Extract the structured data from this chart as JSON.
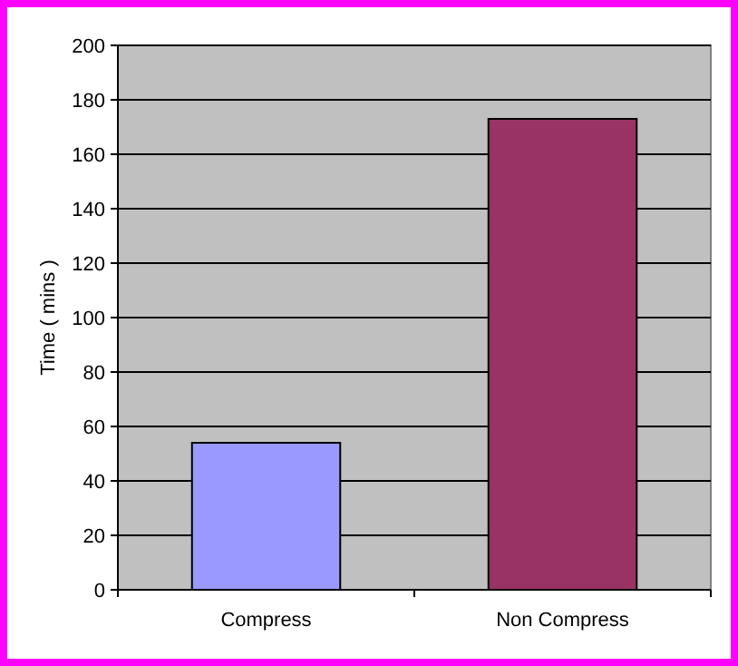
{
  "chart_data": {
    "type": "bar",
    "ylabel": "Time ( mins )",
    "categories": [
      "Compress",
      "Non Compress"
    ],
    "values": [
      54,
      173
    ],
    "colors": [
      "#9999ff",
      "#993366"
    ],
    "ylim": [
      0,
      200
    ],
    "yticks": [
      0,
      20,
      40,
      60,
      80,
      100,
      120,
      140,
      160,
      180,
      200
    ],
    "grid": "y"
  }
}
